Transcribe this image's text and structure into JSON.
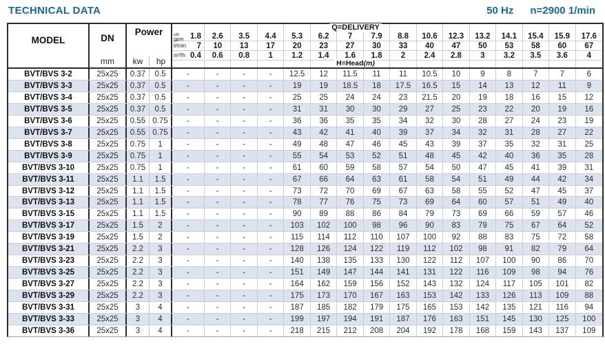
{
  "header": {
    "title": "TECHNICAL DATA",
    "frequency": "50 Hz",
    "speed": "n=2900 1/min"
  },
  "table": {
    "labels": {
      "model": "MODEL",
      "dn": "DN",
      "dn_unit": "mm",
      "power": "Power",
      "kw": "kw",
      "hp": "hp",
      "delivery": "Q=DELIVERY",
      "head": "H=Head",
      "head_unit": "(m)",
      "gpm_line1": "us",
      "gpm_line2": "gpm",
      "lmin": "l/min",
      "m3h": "m³/h"
    },
    "gpm": [
      "1.8",
      "2.6",
      "3.5",
      "4.4",
      "5.3",
      "6.2",
      "7",
      "7.9",
      "8.8",
      "10.6",
      "12.3",
      "13.2",
      "14.1",
      "15.4",
      "15.9",
      "17.6"
    ],
    "lmin": [
      "7",
      "10",
      "13",
      "17",
      "20",
      "23",
      "27",
      "30",
      "33",
      "40",
      "47",
      "50",
      "53",
      "58",
      "60",
      "67"
    ],
    "m3h": [
      "0.4",
      "0.6",
      "0.8",
      "1",
      "1.2",
      "1.4",
      "1.6",
      "1.8",
      "2",
      "2.4",
      "2.8",
      "3",
      "3.2",
      "3.5",
      "3.6",
      "4"
    ],
    "rows": [
      {
        "model": "BVT/BVS 3-2",
        "dn": "25x25",
        "kw": "0.37",
        "hp": "0.5",
        "head": [
          "-",
          "-",
          "-",
          "-",
          "12.5",
          "12",
          "11.5",
          "11",
          "11",
          "10.5",
          "10",
          "9",
          "8",
          "7",
          "7",
          "6"
        ]
      },
      {
        "model": "BVT/BVS 3-3",
        "dn": "25x25",
        "kw": "0.37",
        "hp": "0.5",
        "head": [
          "-",
          "-",
          "-",
          "-",
          "19",
          "19",
          "18.5",
          "18",
          "17.5",
          "16.5",
          "15",
          "14",
          "13",
          "12",
          "11",
          "9"
        ]
      },
      {
        "model": "BVT/BVS 3-4",
        "dn": "25x25",
        "kw": "0.37",
        "hp": "0.5",
        "head": [
          "-",
          "-",
          "-",
          "-",
          "25",
          "25",
          "24",
          "24",
          "23",
          "21.5",
          "20",
          "19",
          "18",
          "16",
          "15",
          "12"
        ]
      },
      {
        "model": "BVT/BVS 3-5",
        "dn": "25x25",
        "kw": "0.37",
        "hp": "0.5",
        "head": [
          "-",
          "-",
          "-",
          "-",
          "31",
          "31",
          "30",
          "30",
          "29",
          "27",
          "25",
          "23",
          "22",
          "20",
          "19",
          "16"
        ]
      },
      {
        "model": "BVT/BVS 3-6",
        "dn": "25x25",
        "kw": "0.55",
        "hp": "0.75",
        "head": [
          "-",
          "-",
          "-",
          "-",
          "36",
          "36",
          "35",
          "35",
          "34",
          "32",
          "30",
          "28",
          "27",
          "24",
          "23",
          "19"
        ]
      },
      {
        "model": "BVT/BVS 3-7",
        "dn": "25x25",
        "kw": "0.55",
        "hp": "0.75",
        "head": [
          "-",
          "-",
          "-",
          "-",
          "43",
          "42",
          "41",
          "40",
          "39",
          "37",
          "34",
          "32",
          "31",
          "28",
          "27",
          "22"
        ]
      },
      {
        "model": "BVT/BVS 3-8",
        "dn": "25x25",
        "kw": "0.75",
        "hp": "1",
        "head": [
          "-",
          "-",
          "-",
          "-",
          "49",
          "48",
          "47",
          "46",
          "45",
          "43",
          "39",
          "37",
          "35",
          "32",
          "31",
          "25"
        ]
      },
      {
        "model": "BVT/BVS 3-9",
        "dn": "25x25",
        "kw": "0.75",
        "hp": "1",
        "head": [
          "-",
          "-",
          "-",
          "-",
          "55",
          "54",
          "53",
          "52",
          "51",
          "48",
          "45",
          "42",
          "40",
          "36",
          "35",
          "28"
        ]
      },
      {
        "model": "BVT/BVS 3-10",
        "dn": "25x25",
        "kw": "0.75",
        "hp": "1",
        "head": [
          "-",
          "-",
          "-",
          "-",
          "61",
          "60",
          "59",
          "58",
          "57",
          "54",
          "50",
          "47",
          "45",
          "41",
          "39",
          "31"
        ]
      },
      {
        "model": "BVT/BVS 3-11",
        "dn": "25x25",
        "kw": "1.1",
        "hp": "1.5",
        "head": [
          "-",
          "-",
          "-",
          "-",
          "67",
          "66",
          "64",
          "63",
          "61",
          "58",
          "54",
          "51",
          "49",
          "44",
          "42",
          "34"
        ]
      },
      {
        "model": "BVT/BVS 3-12",
        "dn": "25x25",
        "kw": "1.1",
        "hp": "1.5",
        "head": [
          "-",
          "-",
          "-",
          "-",
          "73",
          "72",
          "70",
          "69",
          "67",
          "63",
          "58",
          "55",
          "52",
          "47",
          "45",
          "37"
        ]
      },
      {
        "model": "BVT/BVS 3-13",
        "dn": "25x25",
        "kw": "1.1",
        "hp": "1.5",
        "head": [
          "-",
          "-",
          "-",
          "-",
          "78",
          "77",
          "76",
          "75",
          "73",
          "69",
          "64",
          "60",
          "57",
          "51",
          "49",
          "40"
        ]
      },
      {
        "model": "BVT/BVS 3-15",
        "dn": "25x25",
        "kw": "1.1",
        "hp": "1.5",
        "head": [
          "-",
          "-",
          "-",
          "-",
          "90",
          "89",
          "88",
          "86",
          "84",
          "79",
          "73",
          "69",
          "66",
          "59",
          "57",
          "46"
        ]
      },
      {
        "model": "BVT/BVS 3-17",
        "dn": "25x25",
        "kw": "1.5",
        "hp": "2",
        "head": [
          "-",
          "-",
          "-",
          "-",
          "103",
          "102",
          "100",
          "98",
          "96",
          "90",
          "83",
          "79",
          "75",
          "67",
          "64",
          "52"
        ]
      },
      {
        "model": "BVT/BVS 3-19",
        "dn": "25x25",
        "kw": "1.5",
        "hp": "2",
        "head": [
          "-",
          "-",
          "-",
          "-",
          "115",
          "114",
          "112",
          "110",
          "107",
          "100",
          "92",
          "88",
          "83",
          "75",
          "72",
          "58"
        ]
      },
      {
        "model": "BVT/BVS 3-21",
        "dn": "25x25",
        "kw": "2.2",
        "hp": "3",
        "head": [
          "-",
          "-",
          "-",
          "-",
          "128",
          "126",
          "124",
          "122",
          "119",
          "112",
          "102",
          "98",
          "91",
          "82",
          "79",
          "64"
        ]
      },
      {
        "model": "BVT/BVS 3-23",
        "dn": "25x25",
        "kw": "2.2",
        "hp": "3",
        "head": [
          "-",
          "-",
          "-",
          "-",
          "140",
          "138",
          "135",
          "133",
          "130",
          "122",
          "112",
          "107",
          "100",
          "90",
          "86",
          "70"
        ]
      },
      {
        "model": "BVT/BVS 3-25",
        "dn": "25x25",
        "kw": "2.2",
        "hp": "3",
        "head": [
          "-",
          "-",
          "-",
          "-",
          "151",
          "149",
          "147",
          "144",
          "141",
          "131",
          "122",
          "116",
          "109",
          "98",
          "94",
          "76"
        ]
      },
      {
        "model": "BVT/BVS 3-27",
        "dn": "25x25",
        "kw": "2.2",
        "hp": "3",
        "head": [
          "-",
          "-",
          "-",
          "-",
          "164",
          "162",
          "159",
          "156",
          "152",
          "143",
          "132",
          "124",
          "117",
          "105",
          "101",
          "82"
        ]
      },
      {
        "model": "BVT/BVS 3-29",
        "dn": "25x25",
        "kw": "2.2",
        "hp": "3",
        "head": [
          "-",
          "-",
          "-",
          "-",
          "175",
          "173",
          "170",
          "167",
          "163",
          "153",
          "142",
          "133",
          "126",
          "113",
          "109",
          "88"
        ]
      },
      {
        "model": "BVT/BVS 3-31",
        "dn": "25x25",
        "kw": "3",
        "hp": "4",
        "head": [
          "-",
          "-",
          "-",
          "-",
          "187",
          "185",
          "182",
          "179",
          "175",
          "165",
          "153",
          "142",
          "135",
          "121",
          "116",
          "94"
        ]
      },
      {
        "model": "BVT/BVS 3-33",
        "dn": "25x25",
        "kw": "3",
        "hp": "4",
        "head": [
          "-",
          "-",
          "-",
          "-",
          "199",
          "197",
          "194",
          "191",
          "187",
          "176",
          "163",
          "151",
          "145",
          "130",
          "125",
          "100"
        ]
      },
      {
        "model": "BVT/BVS 3-36",
        "dn": "25x25",
        "kw": "3",
        "hp": "4",
        "head": [
          "-",
          "-",
          "-",
          "-",
          "218",
          "215",
          "212",
          "208",
          "204",
          "192",
          "178",
          "168",
          "159",
          "143",
          "137",
          "109"
        ]
      }
    ]
  }
}
